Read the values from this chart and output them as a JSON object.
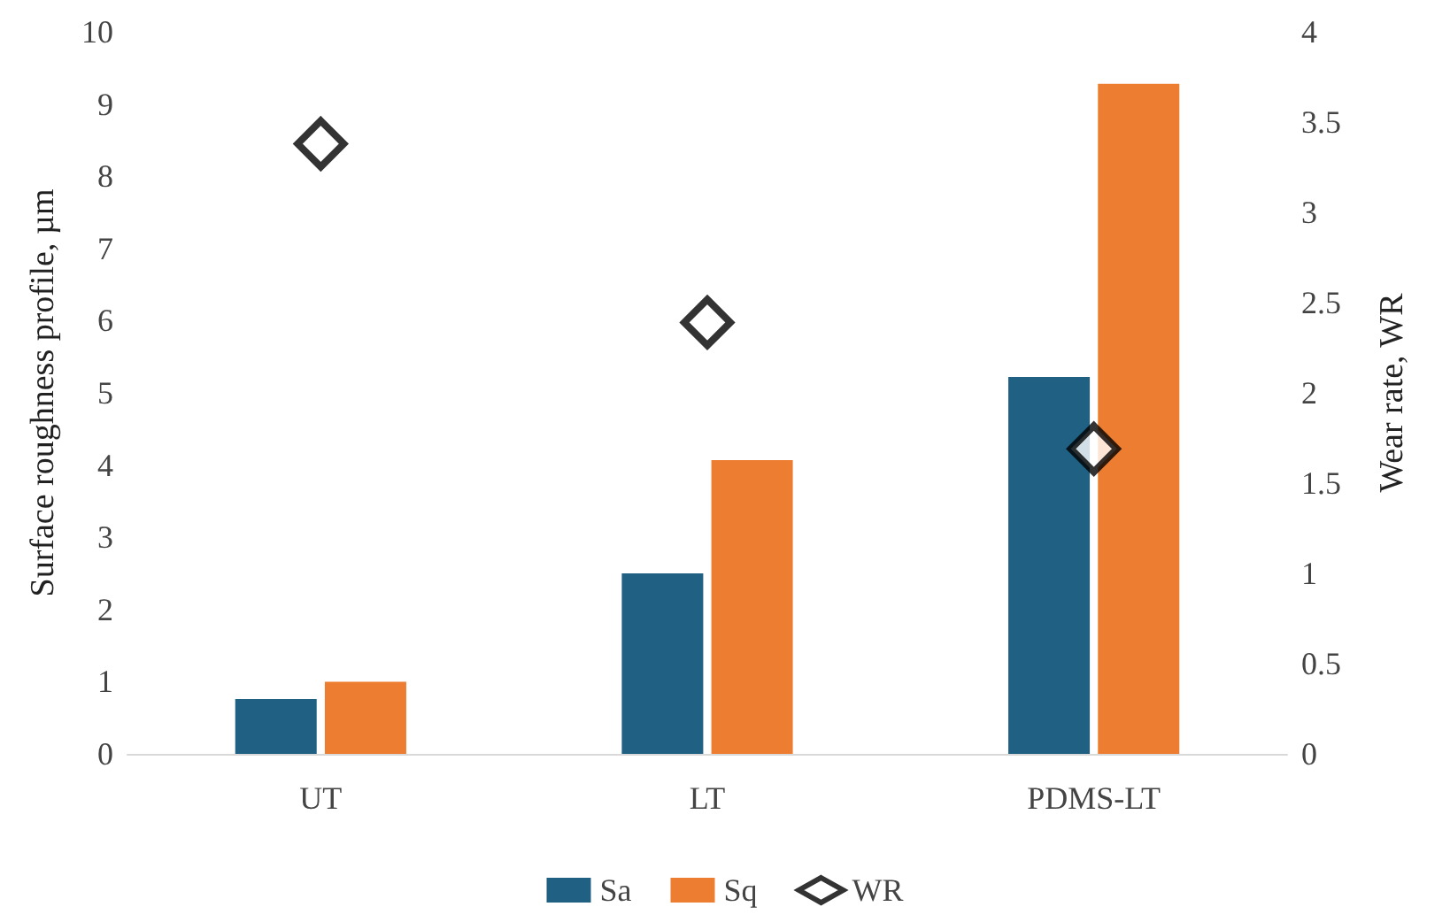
{
  "chart_data": {
    "type": "bar",
    "categories": [
      "UT",
      "LT",
      "PDMS-LT"
    ],
    "series": [
      {
        "name": "Sa",
        "color": "#1f6083",
        "values": [
          0.76,
          2.5,
          5.22
        ]
      },
      {
        "name": "Sq",
        "color": "#ed7d31",
        "values": [
          1.0,
          4.07,
          9.28
        ]
      },
      {
        "name": "WR",
        "type": "scatter",
        "axis": "y2",
        "color": "#000000",
        "marker": "diamond",
        "values": [
          3.38,
          2.39,
          1.69
        ]
      }
    ],
    "ylabel": "Surface roughness profile, µm",
    "y2label": "Wear rate, WR",
    "ylim": [
      0,
      10
    ],
    "yticks": [
      0,
      1,
      2,
      3,
      4,
      5,
      6,
      7,
      8,
      9,
      10
    ],
    "y2lim": [
      0,
      4
    ],
    "y2ticks": [
      0,
      0.5,
      1,
      1.5,
      2,
      2.5,
      3,
      3.5,
      4
    ],
    "legend": "bottom",
    "grid": false
  }
}
